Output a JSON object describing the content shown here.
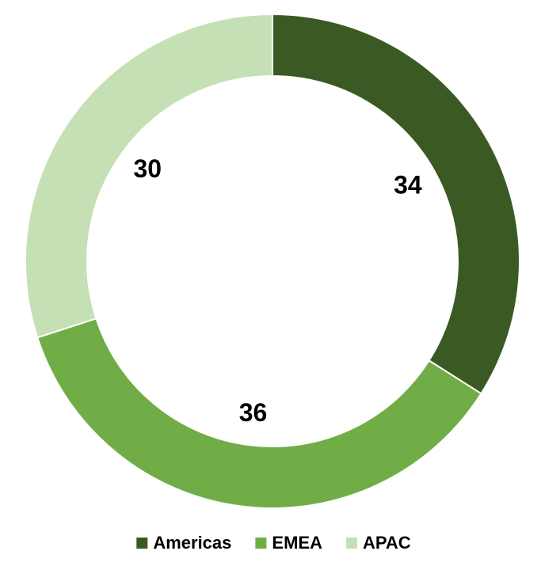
{
  "chart_data": {
    "type": "donut",
    "categories": [
      "Americas",
      "EMEA",
      "APAC"
    ],
    "values": [
      34,
      36,
      30
    ],
    "colors": [
      "#3b5a23",
      "#70ad47",
      "#c5e0b4"
    ],
    "legend": "bottom"
  }
}
